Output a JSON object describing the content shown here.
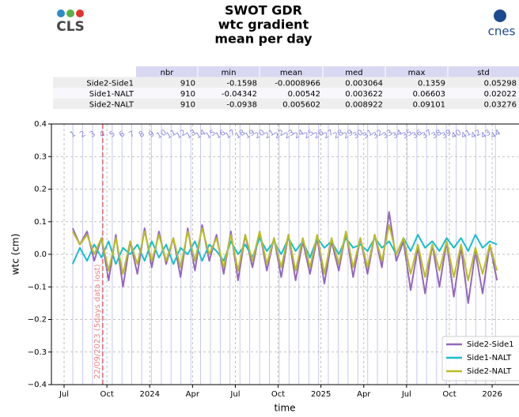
{
  "logos": {
    "left": "CLS",
    "right": "cnes"
  },
  "table": {
    "header": [
      "nbr",
      "min",
      "mean",
      "med",
      "max",
      "std"
    ],
    "rows": [
      [
        "Side2-Side1",
        "910",
        "-0.1598",
        "-0.0008966",
        "0.003064",
        "0.1359",
        "0.05298"
      ],
      [
        "Side1-NALT",
        "910",
        "-0.04342",
        "0.00542",
        "0.003622",
        "0.06603",
        "0.02022"
      ],
      [
        "Side2-NALT",
        "910",
        "-0.0938",
        "0.005602",
        "0.008922",
        "0.09101",
        "0.03276"
      ]
    ]
  },
  "chart_data": {
    "type": "line",
    "title": [
      "SWOT GDR",
      "wtc gradient",
      "mean per day"
    ],
    "xlabel": "time",
    "ylabel": "wtc (cm)",
    "xlim": [
      2023.426,
      2026.152
    ],
    "ylim": [
      -0.4,
      0.4
    ],
    "xticks": [
      {
        "value": 2023.5,
        "label": "Jul"
      },
      {
        "value": 2023.75,
        "label": "Oct"
      },
      2024,
      {
        "value": 2024.25,
        "label": "Apr"
      },
      {
        "value": 2024.5,
        "label": "Jul"
      },
      {
        "value": 2024.75,
        "label": "Oct"
      },
      2025,
      {
        "value": 2025.25,
        "label": "Apr"
      },
      {
        "value": 2025.5,
        "label": "Jul"
      },
      {
        "value": 2025.75,
        "label": "Oct"
      },
      2026
    ],
    "yticks": [
      {
        "value": -0.4,
        "label": "−0.4"
      },
      {
        "value": -0.3,
        "label": "−0.3"
      },
      {
        "value": -0.2,
        "label": "−0.2"
      },
      {
        "value": -0.1,
        "label": "−0.1"
      },
      {
        "value": 0,
        "label": "0.0"
      },
      0.1,
      0.2,
      0.3,
      0.4
    ],
    "grid": true,
    "legend": "lower right",
    "cycles": {
      "color": "#c8c8f0",
      "label_color": "#8a8ae0",
      "labels": [
        "1",
        "2",
        "3",
        "4",
        "5",
        "6",
        "7",
        "8",
        "9",
        "10",
        "11",
        "12",
        "13",
        "14",
        "15",
        "16",
        "17",
        "18",
        "19",
        "20",
        "21",
        "22",
        "23",
        "24",
        "25",
        "26",
        "27",
        "28",
        "29",
        "30",
        "31",
        "32",
        "33",
        "34",
        "35",
        "36",
        "37",
        "38",
        "39",
        "40",
        "41",
        "42",
        "43",
        "44"
      ],
      "x": [
        2023.551,
        2023.608,
        2023.666,
        2023.723,
        2023.781,
        2023.838,
        2023.895,
        2023.953,
        2024.01,
        2024.068,
        2024.125,
        2024.182,
        2024.24,
        2024.297,
        2024.355,
        2024.412,
        2024.469,
        2024.527,
        2024.584,
        2024.642,
        2024.699,
        2024.756,
        2024.814,
        2024.871,
        2024.929,
        2024.986,
        2025.043,
        2025.101,
        2025.158,
        2025.216,
        2025.273,
        2025.33,
        2025.388,
        2025.445,
        2025.503,
        2025.56,
        2025.617,
        2025.675,
        2025.732,
        2025.79,
        2025.847,
        2025.904,
        2025.962,
        2026.019
      ]
    },
    "events": [
      {
        "x": 2023.726,
        "label": "22/09/2023 (5days data lost)",
        "color": "#e05050"
      }
    ],
    "x": [
      2023.55,
      2023.592,
      2023.634,
      2023.676,
      2023.718,
      2023.76,
      2023.802,
      2023.844,
      2023.886,
      2023.928,
      2023.97,
      2024.012,
      2024.054,
      2024.096,
      2024.138,
      2024.18,
      2024.222,
      2024.264,
      2024.306,
      2024.348,
      2024.39,
      2024.432,
      2024.474,
      2024.516,
      2024.558,
      2024.6,
      2024.642,
      2024.684,
      2024.726,
      2024.768,
      2024.81,
      2024.852,
      2024.894,
      2024.936,
      2024.978,
      2025.02,
      2025.062,
      2025.104,
      2025.146,
      2025.188,
      2025.23,
      2025.272,
      2025.314,
      2025.356,
      2025.398,
      2025.44,
      2025.482,
      2025.524,
      2025.566,
      2025.608,
      2025.65,
      2025.692,
      2025.734,
      2025.776,
      2025.818,
      2025.86,
      2025.902,
      2025.944,
      2025.986,
      2026.028
    ],
    "series": [
      {
        "name": "Side2-Side1",
        "color": "#9467bd",
        "values": [
          0.08,
          0.03,
          0.07,
          -0.02,
          0.05,
          -0.08,
          0.06,
          -0.1,
          0.04,
          -0.06,
          0.08,
          -0.04,
          0.07,
          -0.03,
          0.05,
          -0.07,
          0.08,
          -0.05,
          0.09,
          -0.02,
          0.06,
          -0.06,
          0.07,
          -0.08,
          0.06,
          -0.04,
          0.07,
          -0.05,
          0.05,
          -0.07,
          0.06,
          -0.08,
          0.04,
          -0.06,
          0.05,
          -0.09,
          0.04,
          -0.05,
          0.07,
          -0.07,
          0.05,
          -0.06,
          0.06,
          -0.04,
          0.13,
          -0.02,
          0.04,
          -0.11,
          0.02,
          -0.12,
          0.03,
          -0.1,
          0.04,
          -0.13,
          0.02,
          -0.15,
          0.01,
          -0.12,
          0.03,
          -0.08
        ]
      },
      {
        "name": "Side1-NALT",
        "color": "#17becf",
        "values": [
          -0.03,
          0.02,
          -0.02,
          0.03,
          -0.01,
          0.04,
          -0.03,
          0.02,
          0.0,
          0.03,
          -0.02,
          0.04,
          -0.01,
          0.03,
          -0.03,
          0.02,
          0.0,
          0.04,
          -0.02,
          0.03,
          0.01,
          -0.02,
          0.04,
          0.0,
          0.03,
          -0.01,
          0.05,
          0.01,
          0.04,
          0.0,
          0.05,
          0.01,
          0.04,
          -0.01,
          0.05,
          0.02,
          0.04,
          0.0,
          0.05,
          0.02,
          0.03,
          0.01,
          0.05,
          0.02,
          0.04,
          0.0,
          0.05,
          0.01,
          0.06,
          0.02,
          0.04,
          0.01,
          0.05,
          0.02,
          0.05,
          0.01,
          0.06,
          0.02,
          0.04,
          0.03
        ]
      },
      {
        "name": "Side2-NALT",
        "color": "#bcbd22",
        "values": [
          0.07,
          0.03,
          0.06,
          0.0,
          0.05,
          -0.05,
          0.05,
          -0.06,
          0.04,
          -0.03,
          0.07,
          -0.02,
          0.06,
          -0.02,
          0.05,
          -0.04,
          0.07,
          -0.02,
          0.08,
          0.0,
          0.05,
          -0.04,
          0.06,
          -0.05,
          0.06,
          -0.02,
          0.07,
          -0.03,
          0.05,
          -0.04,
          0.06,
          -0.05,
          0.05,
          -0.04,
          0.06,
          -0.06,
          0.05,
          -0.03,
          0.07,
          -0.04,
          0.05,
          -0.04,
          0.06,
          -0.02,
          0.09,
          0.0,
          0.05,
          -0.06,
          0.03,
          -0.07,
          0.03,
          -0.05,
          0.04,
          -0.07,
          0.03,
          -0.08,
          0.02,
          -0.06,
          0.03,
          -0.05
        ]
      }
    ]
  }
}
